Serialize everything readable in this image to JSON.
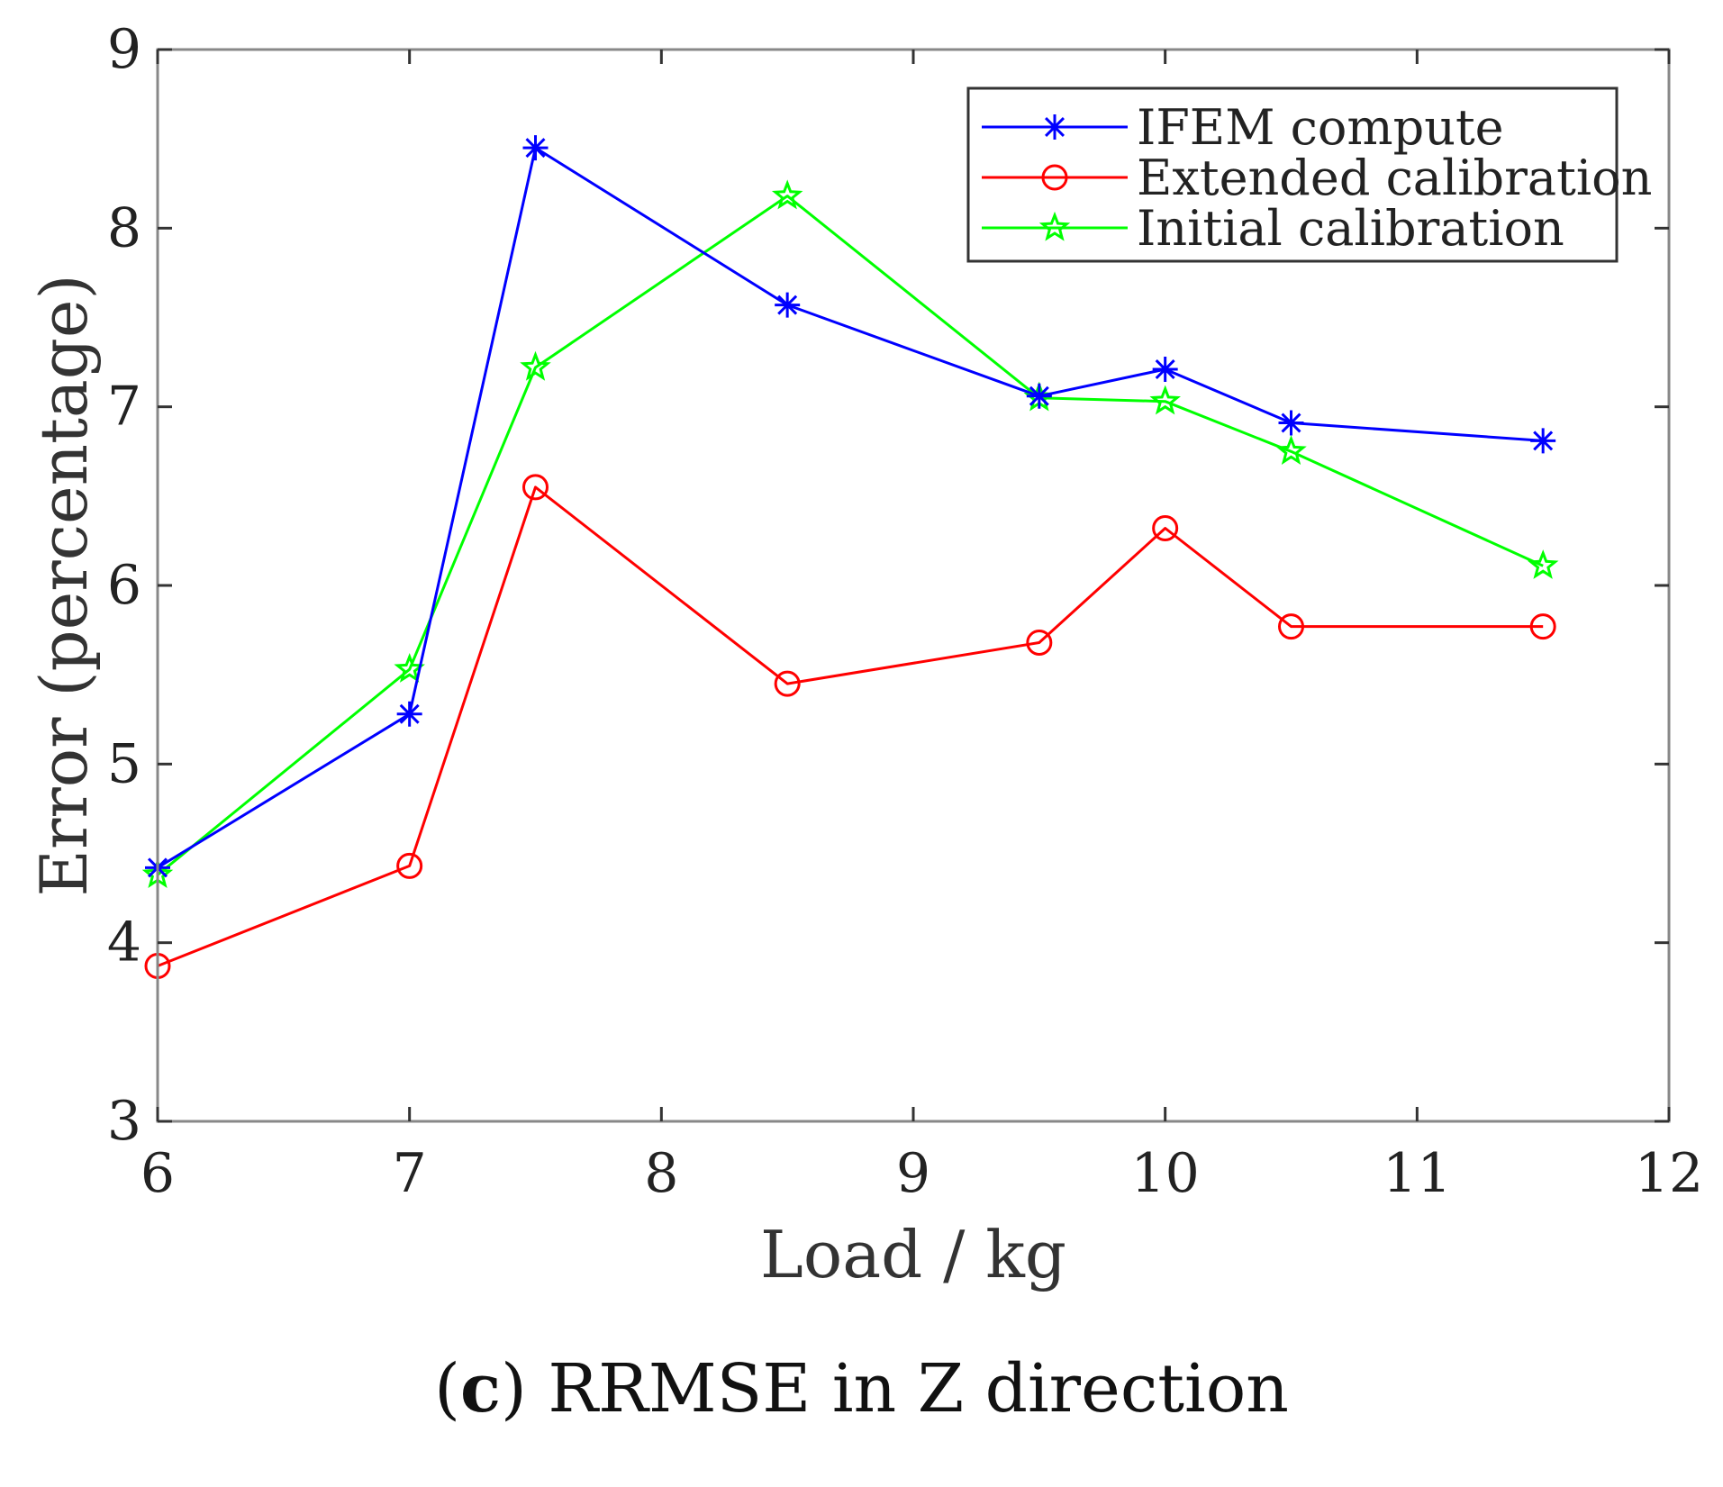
{
  "chart_data": {
    "type": "line",
    "title": "",
    "xlabel": "Load / kg",
    "ylabel": "Error (percentage)",
    "xlim": [
      6,
      12
    ],
    "ylim": [
      3,
      9
    ],
    "xticks": [
      "6",
      "7",
      "8",
      "9",
      "10",
      "11",
      "12"
    ],
    "yticks": [
      "3",
      "4",
      "5",
      "6",
      "7",
      "8",
      "9"
    ],
    "grid": false,
    "legend_position": "top-right",
    "x": [
      6,
      7,
      7.5,
      8.5,
      9.5,
      10,
      10.5,
      11.5
    ],
    "series": [
      {
        "name": "IFEM compute",
        "color": "#0000ff",
        "marker": "asterisk",
        "values": [
          4.42,
          5.28,
          8.45,
          7.57,
          7.06,
          7.21,
          6.91,
          6.81
        ]
      },
      {
        "name": "Extended calibration",
        "color": "#ff0000",
        "marker": "circle",
        "values": [
          3.87,
          4.43,
          6.55,
          5.45,
          5.68,
          6.32,
          5.77,
          5.77
        ]
      },
      {
        "name": "Initial calibration",
        "color": "#00ff00",
        "marker": "star",
        "values": [
          4.38,
          5.53,
          7.22,
          8.18,
          7.05,
          7.03,
          6.75,
          6.11
        ]
      }
    ]
  },
  "caption": {
    "label": "c",
    "open_paren": "(",
    "close_paren": ")",
    "text": " RRMSE in Z direction"
  }
}
